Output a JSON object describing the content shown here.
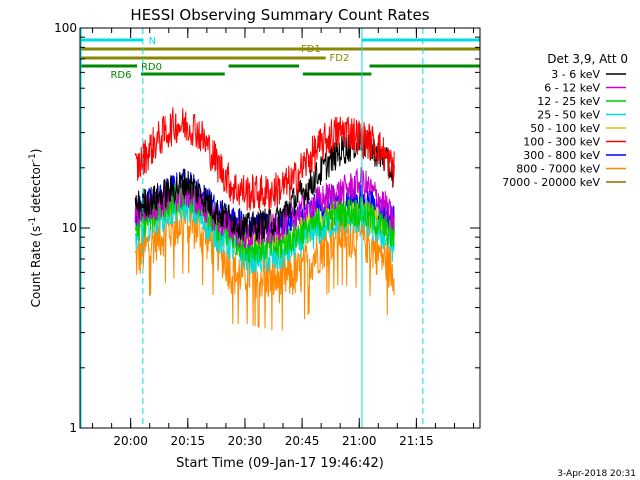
{
  "chart_data": {
    "type": "line",
    "title": "HESSI Observing Summary Count Rates",
    "xlabel": "Start Time (09-Jan-17 19:46:42)",
    "ylabel_main": "Count Rate (s",
    "ylabel_sup": "-1",
    "ylabel_end": " detector",
    "ylabel_close": ")",
    "y_scale": "log",
    "ylim": [
      1,
      100
    ],
    "y_ticks": [
      {
        "value": 1,
        "label": "1"
      },
      {
        "value": 10,
        "label": "10"
      },
      {
        "value": 100,
        "label": "100"
      }
    ],
    "x_unit": "minutes since 19:46:42",
    "xlim": [
      0,
      105
    ],
    "x_ticks": [
      {
        "value": 13.3,
        "label": "20:00"
      },
      {
        "value": 28.3,
        "label": "20:15"
      },
      {
        "value": 43.3,
        "label": "20:30"
      },
      {
        "value": 58.3,
        "label": "20:45"
      },
      {
        "value": 73.3,
        "label": "21:00"
      },
      {
        "value": 88.3,
        "label": "21:15"
      }
    ],
    "data_start": 14.5,
    "data_end": 82.5,
    "legend_header": "Det 3,9, Att 0",
    "legend_placement": "right",
    "series": [
      {
        "name": "3 - 6 keV",
        "color": "#000000",
        "values": [
          [
            15,
            13
          ],
          [
            20,
            14
          ],
          [
            28,
            17
          ],
          [
            36,
            12
          ],
          [
            44,
            10
          ],
          [
            52,
            11
          ],
          [
            60,
            16
          ],
          [
            68,
            24
          ],
          [
            74,
            27
          ],
          [
            80,
            22
          ],
          [
            82,
            19
          ]
        ]
      },
      {
        "name": "6 - 12 keV",
        "color": "#cc00cc",
        "values": [
          [
            15,
            12
          ],
          [
            20,
            13
          ],
          [
            28,
            15
          ],
          [
            36,
            11
          ],
          [
            44,
            9
          ],
          [
            52,
            10
          ],
          [
            60,
            13
          ],
          [
            68,
            15
          ],
          [
            74,
            17
          ],
          [
            80,
            13
          ],
          [
            82,
            11
          ]
        ]
      },
      {
        "name": "12 - 25 keV",
        "color": "#00cc00",
        "values": [
          [
            15,
            10
          ],
          [
            20,
            12
          ],
          [
            28,
            15
          ],
          [
            36,
            10
          ],
          [
            44,
            8
          ],
          [
            52,
            8
          ],
          [
            60,
            10
          ],
          [
            68,
            12
          ],
          [
            74,
            12
          ],
          [
            80,
            10
          ],
          [
            82,
            9
          ]
        ]
      },
      {
        "name": "25 - 50 keV",
        "color": "#00dddd",
        "values": [
          [
            15,
            9
          ],
          [
            20,
            11
          ],
          [
            28,
            13
          ],
          [
            36,
            9
          ],
          [
            44,
            7
          ],
          [
            52,
            7
          ],
          [
            60,
            9
          ],
          [
            68,
            11
          ],
          [
            74,
            11
          ],
          [
            80,
            9
          ],
          [
            82,
            8
          ]
        ]
      },
      {
        "name": "50 - 100 keV",
        "color": "#cccc00",
        "values": [
          [
            15,
            11
          ],
          [
            20,
            12
          ],
          [
            28,
            14
          ],
          [
            36,
            10
          ],
          [
            44,
            8
          ],
          [
            52,
            8
          ],
          [
            60,
            10
          ],
          [
            68,
            12
          ],
          [
            74,
            12
          ],
          [
            80,
            10
          ],
          [
            82,
            9
          ]
        ]
      },
      {
        "name": "100 - 300 keV",
        "color": "#ff0000",
        "values": [
          [
            15,
            20
          ],
          [
            20,
            27
          ],
          [
            25,
            33
          ],
          [
            30,
            32
          ],
          [
            36,
            21
          ],
          [
            40,
            16
          ],
          [
            44,
            15
          ],
          [
            50,
            15
          ],
          [
            56,
            17
          ],
          [
            60,
            22
          ],
          [
            66,
            29
          ],
          [
            70,
            31
          ],
          [
            74,
            28
          ],
          [
            78,
            26
          ],
          [
            82,
            20
          ]
        ]
      },
      {
        "name": "300 - 800 keV",
        "color": "#0000ff",
        "values": [
          [
            15,
            12
          ],
          [
            20,
            14
          ],
          [
            28,
            17
          ],
          [
            36,
            12
          ],
          [
            44,
            10
          ],
          [
            52,
            10
          ],
          [
            60,
            12
          ],
          [
            68,
            14
          ],
          [
            74,
            14
          ],
          [
            80,
            12
          ],
          [
            82,
            11
          ]
        ]
      },
      {
        "name": "800 - 7000 keV",
        "color": "#ff8800",
        "values": [
          [
            15,
            7
          ],
          [
            20,
            9
          ],
          [
            28,
            11
          ],
          [
            36,
            8
          ],
          [
            40,
            6
          ],
          [
            44,
            6
          ],
          [
            52,
            5.5
          ],
          [
            58,
            6
          ],
          [
            62,
            7.5
          ],
          [
            68,
            9.5
          ],
          [
            74,
            9
          ],
          [
            80,
            7
          ],
          [
            82,
            6
          ]
        ]
      },
      {
        "name": "7000 - 20000 keV",
        "color": "#996600",
        "values": []
      }
    ],
    "bars": [
      {
        "label": "N",
        "color": "#00dddd",
        "segments": [
          [
            0,
            16.5
          ],
          [
            74,
            105
          ]
        ]
      },
      {
        "label": "FD1",
        "color": "#888800",
        "segments": [
          [
            0,
            105
          ]
        ]
      },
      {
        "label": "FD2",
        "color": "#888800",
        "segments": [
          [
            0,
            64.5
          ]
        ]
      },
      {
        "label": "RD0",
        "color": "#008800",
        "segments": [
          [
            0,
            15
          ],
          [
            39,
            57.5
          ],
          [
            76,
            105
          ]
        ]
      },
      {
        "label": "RD6",
        "color": "#008800",
        "segments": [
          [
            16,
            38
          ],
          [
            58.5,
            76.5
          ]
        ]
      }
    ],
    "markers": [
      {
        "x": 16.5,
        "color": "#00dddd",
        "style": "dashed"
      },
      {
        "x": 74,
        "color": "#00dddd",
        "style": "solid"
      },
      {
        "x": 90,
        "color": "#00dddd",
        "style": "dashed"
      }
    ],
    "footer_date": "3-Apr-2018 20:31"
  }
}
